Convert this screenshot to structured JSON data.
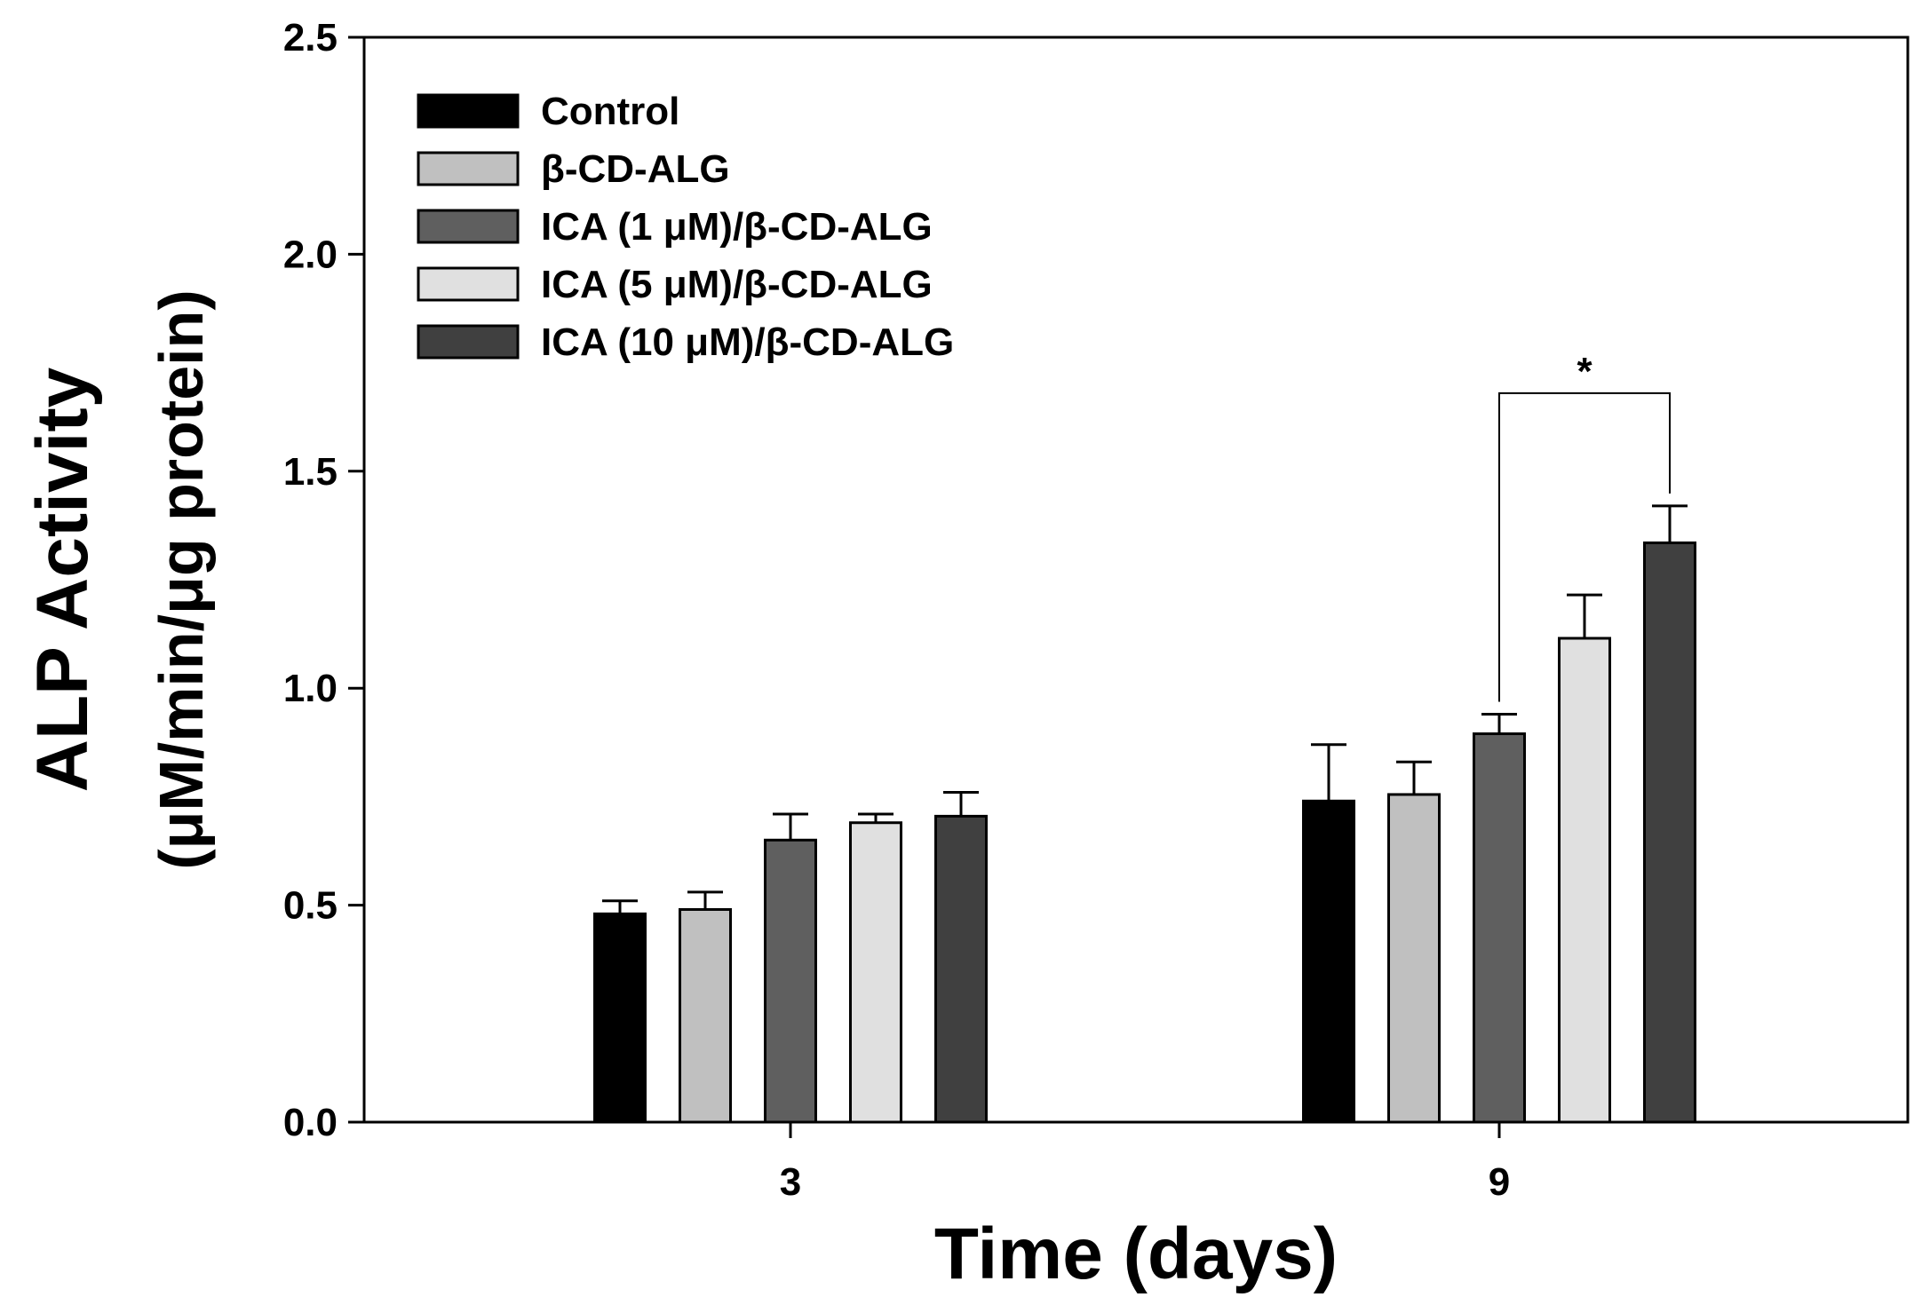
{
  "chart_data": {
    "type": "bar",
    "title": "",
    "xlabel": "Time (days)",
    "ylabel_line1": "ALP Activity",
    "ylabel_line2": "(μM/min/μg protein)",
    "ylim": [
      0,
      2.5
    ],
    "yticks": [
      "0.0",
      "0.5",
      "1.0",
      "1.5",
      "2.0",
      "2.5"
    ],
    "ytick_values": [
      0,
      0.5,
      1.0,
      1.5,
      2.0,
      2.5
    ],
    "categories": [
      "3",
      "9"
    ],
    "legend_position": "top-left",
    "series": [
      {
        "name": "Control",
        "color": "#000000",
        "values": [
          0.48,
          0.74
        ],
        "errors": [
          0.03,
          0.13
        ]
      },
      {
        "name": "β-CD-ALG",
        "color": "#c0c0c0",
        "values": [
          0.49,
          0.755
        ],
        "errors": [
          0.04,
          0.075
        ]
      },
      {
        "name": "ICA (1 μM)/β-CD-ALG",
        "color": "#5f5f5f",
        "values": [
          0.65,
          0.895
        ],
        "errors": [
          0.06,
          0.045
        ]
      },
      {
        "name": "ICA (5 μM)/β-CD-ALG",
        "color": "#e0e0e0",
        "values": [
          0.69,
          1.115
        ],
        "errors": [
          0.02,
          0.1
        ]
      },
      {
        "name": "ICA (10 μM)/β-CD-ALG",
        "color": "#404040",
        "values": [
          0.705,
          1.335
        ],
        "errors": [
          0.055,
          0.085
        ]
      }
    ],
    "annotations": [
      {
        "text": "*",
        "category": "9",
        "from_series": 2,
        "to_series": 4,
        "bracket_value": 1.68
      }
    ]
  }
}
